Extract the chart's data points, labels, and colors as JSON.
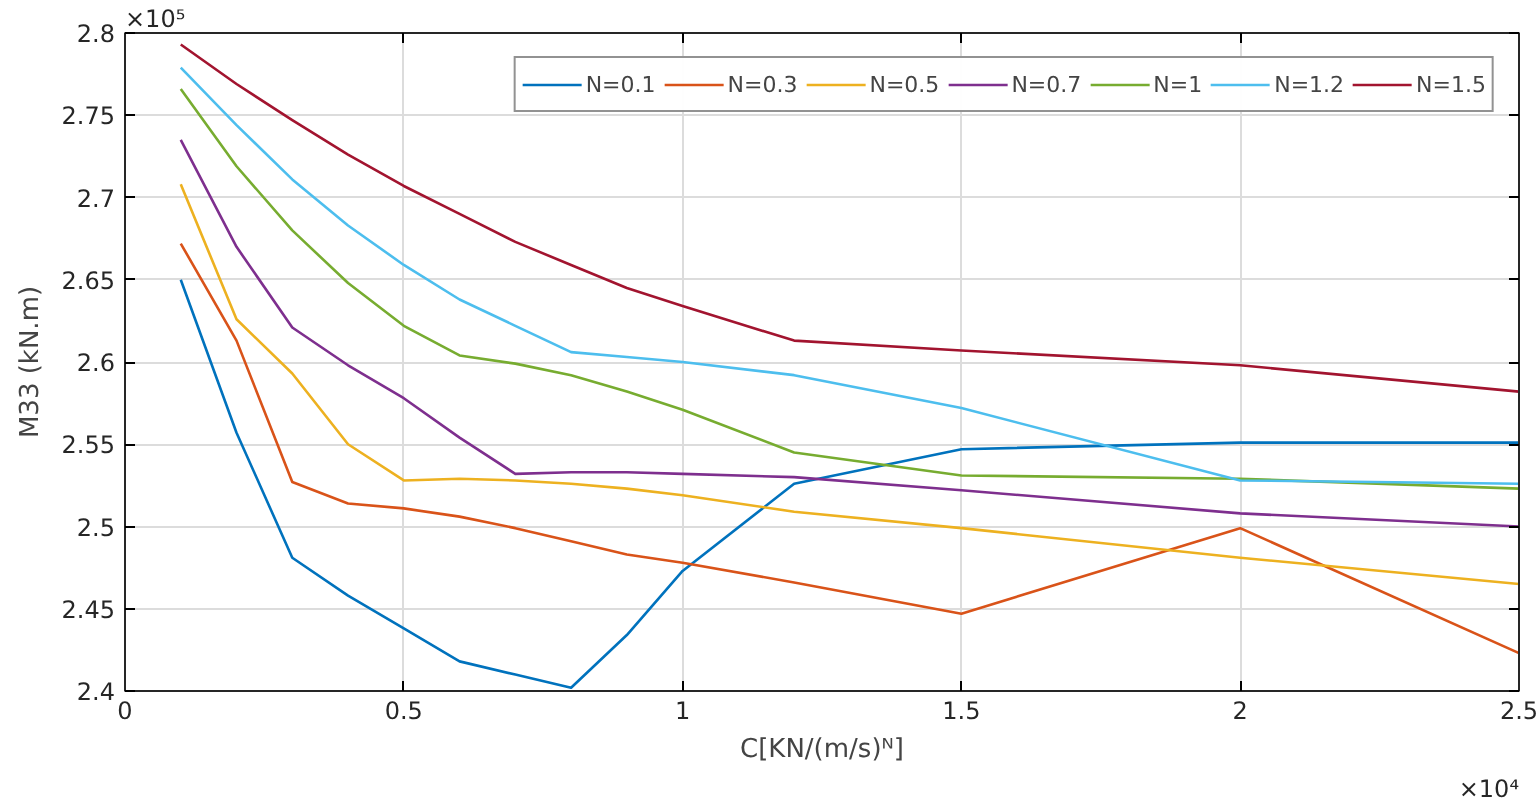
{
  "chart_data": {
    "type": "line",
    "xlabel": "C[KN/(m/s)ᴺ]",
    "ylabel": "M33 (kN.m)",
    "annotations": [
      "×10⁵",
      "×10⁴"
    ],
    "x": [
      0.1,
      0.2,
      0.3,
      0.4,
      0.5,
      0.6,
      0.7,
      0.8,
      0.9,
      1.0,
      1.2,
      1.5,
      2.0,
      2.5
    ],
    "xlim": [
      0,
      2.5
    ],
    "xticks": [
      0,
      0.5,
      1,
      1.5,
      2,
      2.5
    ],
    "ylim": [
      2.4,
      2.8
    ],
    "yticks": [
      2.4,
      2.45,
      2.5,
      2.55,
      2.6,
      2.65,
      2.7,
      2.75,
      2.8
    ],
    "grid": true,
    "legend": "top right",
    "marker": "none",
    "line_style": "solid",
    "series": [
      {
        "name": "N=0.1",
        "color": "#0072bd",
        "values": [
          2.65,
          2.557,
          2.481,
          2.458,
          2.438,
          2.418,
          2.41,
          2.402,
          2.434,
          2.473,
          2.526,
          2.547,
          2.551,
          2.551
        ]
      },
      {
        "name": "N=0.3",
        "color": "#d95319",
        "values": [
          2.672,
          2.613,
          2.527,
          2.514,
          2.511,
          2.506,
          2.499,
          2.491,
          2.483,
          2.478,
          2.466,
          2.447,
          2.499,
          2.423
        ]
      },
      {
        "name": "N=0.5",
        "color": "#edb120",
        "values": [
          2.708,
          2.626,
          2.593,
          2.55,
          2.528,
          2.529,
          2.528,
          2.526,
          2.523,
          2.519,
          2.509,
          2.499,
          2.481,
          2.465
        ]
      },
      {
        "name": "N=0.7",
        "color": "#7e2f8e",
        "values": [
          2.735,
          2.67,
          2.621,
          2.598,
          2.578,
          2.554,
          2.532,
          2.533,
          2.533,
          2.532,
          2.53,
          2.522,
          2.508,
          2.5
        ]
      },
      {
        "name": "N=1",
        "color": "#77ac30",
        "values": [
          2.766,
          2.719,
          2.68,
          2.648,
          2.622,
          2.604,
          2.599,
          2.592,
          2.582,
          2.571,
          2.545,
          2.531,
          2.529,
          2.523
        ]
      },
      {
        "name": "N=1.2",
        "color": "#4dbeee",
        "values": [
          2.779,
          2.744,
          2.711,
          2.683,
          2.659,
          2.638,
          2.622,
          2.606,
          2.603,
          2.6,
          2.592,
          2.572,
          2.528,
          2.526
        ]
      },
      {
        "name": "N=1.5",
        "color": "#a2142f",
        "values": [
          2.793,
          2.769,
          2.747,
          2.726,
          2.707,
          2.69,
          2.673,
          2.659,
          2.645,
          2.634,
          2.613,
          2.607,
          2.598,
          2.582
        ]
      }
    ]
  }
}
